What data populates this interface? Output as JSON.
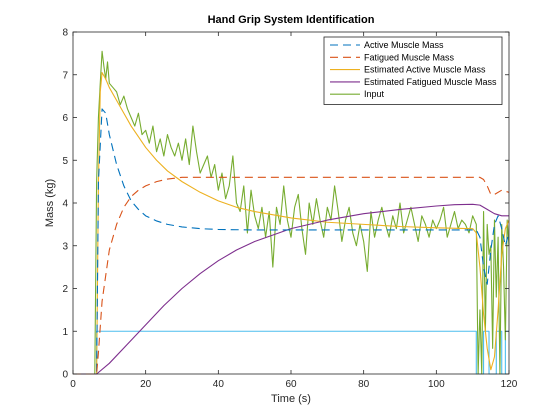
{
  "chart_data": {
    "type": "line",
    "title": "Hand Grip System Identification",
    "xlabel": "Time (s)",
    "ylabel": "Mass (kg)",
    "xlim": [
      0,
      120
    ],
    "ylim": [
      0,
      8
    ],
    "xticks": [
      "0",
      "20",
      "40",
      "60",
      "80",
      "100",
      "120"
    ],
    "yticks": [
      "0",
      "1",
      "2",
      "3",
      "4",
      "5",
      "6",
      "7",
      "8"
    ],
    "grid": false,
    "legend_position": "top-right",
    "series": [
      {
        "name": "Active Muscle Mass",
        "color": "#0072BD",
        "dash": "dashed",
        "legend": true,
        "x": [
          0,
          6.5,
          7,
          8,
          9,
          10,
          12,
          14,
          16,
          18,
          20,
          23,
          26,
          30,
          35,
          40,
          50,
          60,
          80,
          100,
          111,
          112,
          113,
          114,
          115,
          116,
          117,
          118,
          119,
          120
        ],
        "y": [
          0,
          0,
          4.5,
          6.2,
          6.1,
          5.6,
          4.9,
          4.4,
          4.05,
          3.85,
          3.7,
          3.58,
          3.5,
          3.44,
          3.4,
          3.38,
          3.37,
          3.37,
          3.37,
          3.37,
          3.37,
          3.2,
          2.5,
          2.1,
          2.9,
          3.5,
          3.7,
          3.4,
          3.0,
          3.3
        ]
      },
      {
        "name": "Fatigued Muscle Mass",
        "color": "#D95319",
        "dash": "dashed",
        "legend": true,
        "x": [
          0,
          6.5,
          7,
          8,
          10,
          12,
          14,
          16,
          18,
          20,
          23,
          26,
          30,
          40,
          60,
          80,
          100,
          112,
          113,
          114,
          115,
          116,
          118,
          120
        ],
        "y": [
          0,
          0,
          0.5,
          1.7,
          2.9,
          3.5,
          3.9,
          4.15,
          4.3,
          4.4,
          4.5,
          4.56,
          4.6,
          4.6,
          4.6,
          4.6,
          4.6,
          4.6,
          4.55,
          4.4,
          4.2,
          4.2,
          4.3,
          4.25
        ]
      },
      {
        "name": "Estimated Active Muscle Mass",
        "color": "#EDB120",
        "dash": "solid",
        "legend": true,
        "x": [
          0,
          6.5,
          7,
          7.5,
          8,
          9,
          10,
          12,
          14,
          16,
          18,
          20,
          23,
          26,
          30,
          35,
          40,
          45,
          50,
          60,
          70,
          80,
          90,
          100,
          110,
          111,
          112,
          113,
          114,
          115,
          116,
          117,
          118,
          119,
          120
        ],
        "y": [
          0,
          0,
          4.5,
          6.6,
          7.05,
          6.9,
          6.7,
          6.4,
          6.1,
          5.8,
          5.55,
          5.3,
          5.0,
          4.75,
          4.5,
          4.25,
          4.05,
          3.9,
          3.8,
          3.65,
          3.55,
          3.5,
          3.45,
          3.42,
          3.4,
          3.3,
          2.5,
          1.4,
          0.6,
          0.1,
          0.4,
          1.5,
          2.8,
          3.4,
          3.6
        ]
      },
      {
        "name": "Estimated Fatigued Muscle Mass",
        "color": "#7E2F8E",
        "dash": "solid",
        "legend": true,
        "x": [
          0,
          6.5,
          10,
          15,
          20,
          25,
          30,
          35,
          40,
          45,
          50,
          60,
          70,
          80,
          90,
          100,
          105,
          110,
          112,
          114,
          116,
          118,
          120
        ],
        "y": [
          0,
          0,
          0.25,
          0.7,
          1.15,
          1.6,
          2.0,
          2.35,
          2.65,
          2.9,
          3.1,
          3.4,
          3.6,
          3.75,
          3.85,
          3.93,
          3.96,
          3.97,
          3.95,
          3.85,
          3.75,
          3.7,
          3.7
        ]
      },
      {
        "name": "Input",
        "color": "#77AC30",
        "dash": "solid",
        "legend": true,
        "x": [
          0,
          6,
          6.5,
          7,
          7.5,
          8,
          8.5,
          9,
          9.5,
          10,
          11,
          12,
          13,
          14,
          15,
          16,
          17,
          18,
          19,
          20,
          21,
          22,
          23,
          24,
          25,
          26,
          27,
          28,
          29,
          30,
          31,
          32,
          33,
          34,
          35,
          36,
          37,
          38,
          39,
          40,
          41,
          42,
          43,
          44,
          45,
          46,
          47,
          48,
          49,
          50,
          51,
          52,
          53,
          54,
          55,
          56,
          57,
          58,
          59,
          60,
          61,
          62,
          63,
          64,
          65,
          66,
          67,
          68,
          69,
          70,
          71,
          72,
          73,
          74,
          75,
          76,
          77,
          78,
          79,
          80,
          81,
          82,
          83,
          84,
          85,
          86,
          87,
          88,
          89,
          90,
          91,
          92,
          93,
          94,
          95,
          96,
          97,
          98,
          99,
          100,
          101,
          102,
          103,
          104,
          105,
          106,
          107,
          108,
          109,
          110,
          111,
          111.5,
          112,
          112.5,
          113,
          113.5,
          114,
          114.5,
          115,
          115.5,
          116,
          116.5,
          117,
          117.5,
          118,
          118.5,
          119,
          119.5,
          120
        ],
        "y": [
          0,
          0,
          4.5,
          6.0,
          6.8,
          7.55,
          7.2,
          6.9,
          7.3,
          6.8,
          6.7,
          6.6,
          6.3,
          6.5,
          6.2,
          6.0,
          5.8,
          6.1,
          5.6,
          5.7,
          5.4,
          5.8,
          5.2,
          5.5,
          5.1,
          5.6,
          5.3,
          5.1,
          5.4,
          5.0,
          5.5,
          4.9,
          5.8,
          5.2,
          4.7,
          4.9,
          5.1,
          4.6,
          4.9,
          4.3,
          4.7,
          4.1,
          4.4,
          5.1,
          4.0,
          3.8,
          4.4,
          3.3,
          4.3,
          3.7,
          3.4,
          3.9,
          3.2,
          3.8,
          2.5,
          3.9,
          3.5,
          4.4,
          3.6,
          3.2,
          3.9,
          4.2,
          3.4,
          2.8,
          4.0,
          3.5,
          4.1,
          3.6,
          3.2,
          3.9,
          3.6,
          4.4,
          3.8,
          3.1,
          3.6,
          3.9,
          3.3,
          3.0,
          3.5,
          3.1,
          2.4,
          3.8,
          3.2,
          3.6,
          3.9,
          3.5,
          3.2,
          3.7,
          3.4,
          4.0,
          3.3,
          3.6,
          3.9,
          3.5,
          3.1,
          3.7,
          3.5,
          3.2,
          3.6,
          3.4,
          3.6,
          3.9,
          3.2,
          3.5,
          3.8,
          3.4,
          3.6,
          3.5,
          3.3,
          3.7,
          3.5,
          0.0,
          1.5,
          0.0,
          3.8,
          1.0,
          3.5,
          2.8,
          3.0,
          0.6,
          3.6,
          1.8,
          3.2,
          0.0,
          3.5,
          2.5,
          0.8,
          3.6,
          3.0
        ]
      },
      {
        "name": "",
        "color": "#4DBEEE",
        "dash": "solid",
        "legend": false,
        "x": [
          0,
          6.5,
          6.5,
          111,
          111,
          113,
          113,
          114.5,
          114.5,
          116.5,
          116.5,
          118,
          118,
          119,
          119,
          120
        ],
        "y": [
          0,
          0,
          1,
          1,
          0,
          0,
          1,
          1,
          0,
          0,
          1,
          1,
          0,
          0,
          1,
          1
        ]
      }
    ]
  }
}
